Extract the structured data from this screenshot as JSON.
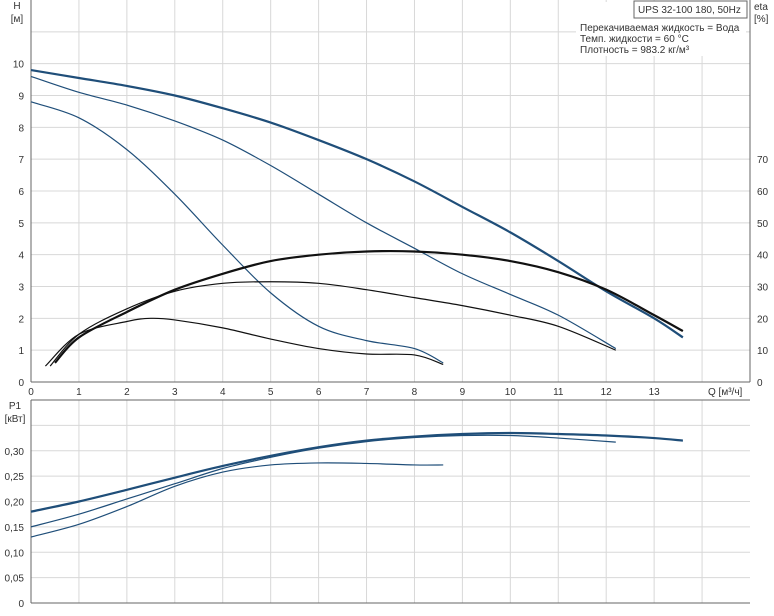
{
  "chart_data": [
    {
      "type": "line",
      "title": "UPS 32-100  180, 50Hz",
      "annotations": [
        "Перекачиваемая жидкость = Вода",
        "Темп. жидкости = 60 °C",
        "Плотность = 983.2 кг/м³"
      ],
      "xlabel": "Q [м³/ч]",
      "ylabel": "H\n[м]",
      "ylabel_lines": [
        "H",
        "[м]"
      ],
      "y2label_lines": [
        "eta",
        "[%]"
      ],
      "xlim": [
        0,
        15
      ],
      "ylim": [
        0,
        12
      ],
      "y2lim": [
        0,
        120
      ],
      "x_ticks": [
        0,
        1,
        2,
        3,
        4,
        5,
        6,
        7,
        8,
        9,
        10,
        11,
        12,
        13
      ],
      "y_ticks": [
        0,
        1,
        2,
        3,
        4,
        5,
        6,
        7,
        8,
        9,
        10
      ],
      "y2_ticks": [
        0,
        10,
        20,
        30,
        40,
        50,
        60,
        70
      ],
      "grid": true,
      "colors": {
        "head": "#1f4e79",
        "efficiency": "#111111"
      },
      "series": [
        {
          "kind": "head",
          "axis": "left",
          "x": [
            0,
            1,
            2,
            3,
            4,
            5,
            6,
            7,
            8,
            9,
            10,
            11,
            12,
            13,
            13.6
          ],
          "y": [
            9.8,
            9.55,
            9.3,
            9.0,
            8.6,
            8.15,
            7.6,
            7.0,
            6.3,
            5.5,
            4.7,
            3.8,
            2.85,
            2.0,
            1.4
          ]
        },
        {
          "kind": "head",
          "axis": "left",
          "x": [
            0,
            1,
            2,
            3,
            4,
            5,
            6,
            7,
            8,
            9,
            10,
            11,
            12.2
          ],
          "y": [
            9.6,
            9.1,
            8.7,
            8.2,
            7.6,
            6.8,
            5.9,
            5.0,
            4.2,
            3.4,
            2.75,
            2.1,
            1.05
          ]
        },
        {
          "kind": "head",
          "axis": "left",
          "x": [
            0,
            1,
            2,
            3,
            4,
            5,
            6,
            7,
            8,
            8.6
          ],
          "y": [
            8.8,
            8.3,
            7.3,
            5.9,
            4.3,
            2.8,
            1.75,
            1.3,
            1.05,
            0.6
          ]
        },
        {
          "kind": "efficiency",
          "axis": "right",
          "x": [
            0.5,
            1,
            2,
            3,
            4,
            5,
            6,
            7,
            8,
            9,
            10,
            11,
            12,
            13,
            13.6
          ],
          "y": [
            6,
            14,
            22,
            29,
            34,
            38,
            40,
            41,
            41,
            40,
            38,
            34.5,
            29,
            21,
            16
          ]
        },
        {
          "kind": "efficiency",
          "axis": "right",
          "x": [
            0.4,
            1,
            2,
            3,
            4,
            5,
            6,
            7,
            8,
            9,
            10,
            11,
            12.2
          ],
          "y": [
            5,
            15,
            23,
            28.5,
            31,
            31.5,
            31,
            29,
            26.5,
            24,
            21,
            17.5,
            10
          ]
        },
        {
          "kind": "efficiency",
          "axis": "right",
          "x": [
            0.3,
            1,
            2,
            2.5,
            3,
            4,
            5,
            6,
            7,
            8,
            8.6
          ],
          "y": [
            5,
            15,
            19,
            20,
            19.5,
            17,
            13.5,
            10.5,
            8.8,
            8.5,
            5.5
          ]
        }
      ]
    },
    {
      "type": "line",
      "ylabel_lines": [
        "P1",
        "[кВт]"
      ],
      "xlim": [
        0,
        15
      ],
      "ylim": [
        0,
        0.4
      ],
      "y_ticks": [
        "0",
        "0,05",
        "0,10",
        "0,15",
        "0,20",
        "0,25",
        "0,30"
      ],
      "y_tick_values": [
        0,
        0.05,
        0.1,
        0.15,
        0.2,
        0.25,
        0.3
      ],
      "grid": true,
      "colors": {
        "power": "#1f4e79"
      },
      "series": [
        {
          "kind": "power",
          "x": [
            0,
            1,
            2,
            3,
            4,
            5,
            6,
            7,
            8,
            9,
            10,
            11,
            12,
            13,
            13.6
          ],
          "y": [
            0.18,
            0.2,
            0.223,
            0.247,
            0.27,
            0.29,
            0.307,
            0.32,
            0.328,
            0.333,
            0.335,
            0.333,
            0.33,
            0.325,
            0.32
          ]
        },
        {
          "kind": "power",
          "x": [
            0,
            1,
            2,
            3,
            4,
            5,
            6,
            7,
            8,
            9,
            10,
            11,
            12.2
          ],
          "y": [
            0.15,
            0.175,
            0.205,
            0.235,
            0.265,
            0.287,
            0.305,
            0.318,
            0.326,
            0.33,
            0.33,
            0.325,
            0.317
          ]
        },
        {
          "kind": "power",
          "x": [
            0,
            1,
            2,
            3,
            4,
            5,
            6,
            7,
            8,
            8.6
          ],
          "y": [
            0.13,
            0.155,
            0.19,
            0.23,
            0.258,
            0.272,
            0.276,
            0.275,
            0.272,
            0.272
          ]
        }
      ]
    }
  ]
}
